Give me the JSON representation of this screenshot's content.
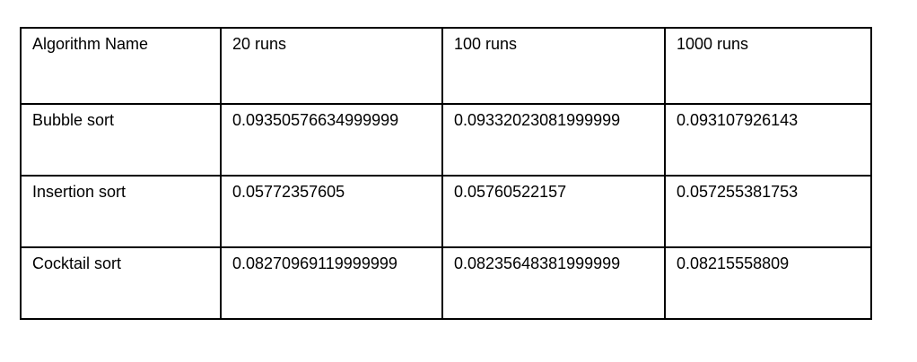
{
  "table": {
    "headers": [
      "Algorithm Name",
      "20 runs",
      "100 runs",
      "1000 runs"
    ],
    "rows": [
      [
        "Bubble sort",
        "0.09350576634999999",
        "0.09332023081999999",
        "0.093107926143"
      ],
      [
        "Insertion sort",
        "0.05772357605",
        "0.05760522157",
        "0.057255381753"
      ],
      [
        "Cocktail sort",
        "0.08270969119999999",
        "0.08235648381999999",
        "0.08215558809"
      ]
    ]
  }
}
